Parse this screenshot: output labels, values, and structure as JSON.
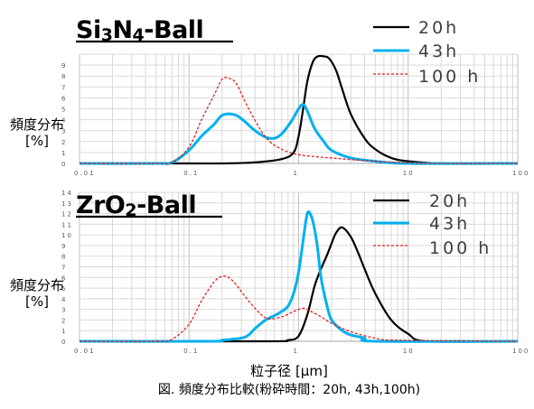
{
  "chart_data": [
    {
      "type": "line",
      "title": "Si3N4-Ball",
      "title_parts": {
        "a": "Si",
        "sub": "3",
        "b": "N",
        "sub2": "4",
        "c": "-Ball"
      },
      "ylabel_lines": [
        "頻度分布",
        "[%]"
      ],
      "x_scale": "log",
      "xlim": [
        0.01,
        100
      ],
      "ylim": [
        0,
        10
      ],
      "x_ticks": [
        "0.01",
        "0.1",
        "1",
        "10",
        "100"
      ],
      "y_ticks": [
        "0",
        "1",
        "2",
        "3",
        "4",
        "5",
        "6",
        "7",
        "8",
        "9"
      ],
      "grid": true,
      "legend": "top-right",
      "series": [
        {
          "name": "20h",
          "color": "#000000",
          "dash": false,
          "x": [
            0.01,
            0.1,
            0.2,
            0.4,
            0.7,
            0.9,
            1.0,
            1.1,
            1.2,
            1.35,
            1.5,
            1.7,
            1.9,
            2.2,
            2.5,
            3,
            4,
            5,
            7,
            10,
            20,
            100
          ],
          "y": [
            0,
            0,
            0,
            0.1,
            0.4,
            1.0,
            2.5,
            5.0,
            7.5,
            9.3,
            9.8,
            9.8,
            9.6,
            8.5,
            6.8,
            4.5,
            2.3,
            1.3,
            0.5,
            0.2,
            0,
            0
          ]
        },
        {
          "name": "43h",
          "color": "#00b0f0",
          "dash": false,
          "x": [
            0.01,
            0.05,
            0.07,
            0.1,
            0.13,
            0.17,
            0.2,
            0.25,
            0.3,
            0.4,
            0.5,
            0.6,
            0.7,
            0.85,
            1.0,
            1.1,
            1.2,
            1.4,
            1.7,
            2,
            3,
            5,
            10,
            100
          ],
          "y": [
            0,
            0,
            0.1,
            1.2,
            2.5,
            3.6,
            4.4,
            4.5,
            4.1,
            3.0,
            2.4,
            2.3,
            2.7,
            3.8,
            5.0,
            5.4,
            4.8,
            3.2,
            2.0,
            1.2,
            0.5,
            0.2,
            0,
            0
          ]
        },
        {
          "name": "100 h",
          "color": "#e02020",
          "dash": true,
          "x": [
            0.01,
            0.05,
            0.07,
            0.1,
            0.13,
            0.17,
            0.2,
            0.23,
            0.27,
            0.35,
            0.5,
            0.7,
            1.0,
            1.5,
            2,
            3,
            5,
            10,
            20,
            100
          ],
          "y": [
            0,
            0,
            0.1,
            1.5,
            4.0,
            6.3,
            7.7,
            7.8,
            7.3,
            5.0,
            2.4,
            1.3,
            0.8,
            0.6,
            0.5,
            0.35,
            0.2,
            0.05,
            0,
            0
          ]
        }
      ]
    },
    {
      "type": "line",
      "title": "ZrO2-Ball",
      "title_parts": {
        "a": "ZrO",
        "sub": "2",
        "b": "-Ball"
      },
      "ylabel_lines": [
        "頻度分布",
        "[%]"
      ],
      "x_scale": "log",
      "xlim": [
        0.01,
        100
      ],
      "ylim": [
        0,
        14
      ],
      "x_ticks": [
        "0.01",
        "0.1",
        "1",
        "10",
        "100"
      ],
      "y_ticks": [
        "0",
        "1",
        "2",
        "3",
        "4",
        "5",
        "6",
        "7",
        "8",
        "9",
        "10",
        "11",
        "12",
        "13",
        "14"
      ],
      "grid": true,
      "legend": "top-right",
      "series": [
        {
          "name": "20h",
          "color": "#000000",
          "dash": false,
          "x": [
            0.01,
            0.5,
            0.8,
            1.0,
            1.2,
            1.4,
            1.6,
            1.8,
            2.0,
            2.2,
            2.5,
            3,
            3.5,
            4,
            5,
            7,
            10,
            15,
            100
          ],
          "y": [
            0,
            0,
            0.1,
            0.5,
            2.5,
            5.2,
            6.8,
            8.0,
            9.2,
            10.2,
            10.7,
            9.8,
            8.3,
            6.8,
            4.5,
            2.0,
            0.7,
            0,
            0
          ]
        },
        {
          "name": "43h",
          "color": "#00b0f0",
          "dash": false,
          "x": [
            0.01,
            0.15,
            0.2,
            0.3,
            0.35,
            0.4,
            0.5,
            0.6,
            0.7,
            0.8,
            0.9,
            1.0,
            1.1,
            1.2,
            1.3,
            1.4,
            1.5,
            1.6,
            1.8,
            2,
            2.5,
            3,
            4,
            5,
            100
          ],
          "y": [
            0,
            0,
            0.1,
            0.3,
            0.6,
            1.2,
            2.0,
            2.4,
            2.8,
            3.3,
            4.5,
            6.5,
            9.5,
            12.0,
            11.8,
            10.5,
            8.5,
            6.0,
            3.5,
            2.0,
            1.0,
            0.6,
            0.3,
            0,
            0
          ]
        },
        {
          "name": "100 h",
          "color": "#e02020",
          "dash": true,
          "x": [
            0.01,
            0.05,
            0.07,
            0.1,
            0.13,
            0.17,
            0.2,
            0.23,
            0.27,
            0.35,
            0.5,
            0.7,
            0.9,
            1.1,
            1.3,
            1.6,
            2,
            3,
            5,
            8,
            100
          ],
          "y": [
            0,
            0,
            0.2,
            1.6,
            3.8,
            5.6,
            6.1,
            6.0,
            5.3,
            3.8,
            2.2,
            2.3,
            2.8,
            3.1,
            2.8,
            2.3,
            1.7,
            0.9,
            0.3,
            0.1,
            0
          ]
        }
      ]
    }
  ],
  "xlabel": "粒子径 [μm]",
  "caption": "図. 頻度分布比較(粉砕時間：20h, 43h,100h)"
}
